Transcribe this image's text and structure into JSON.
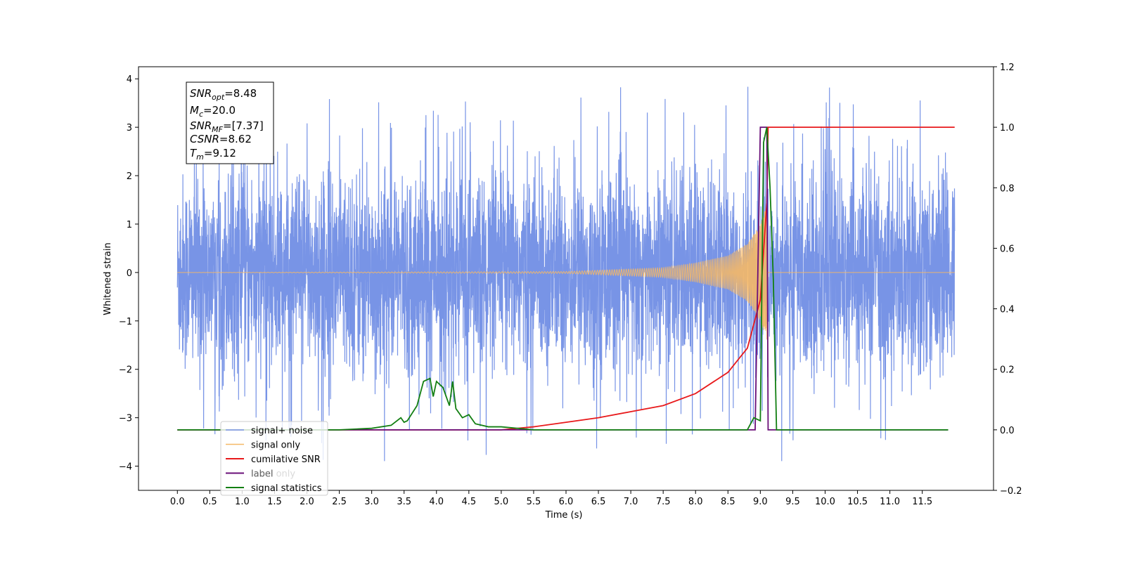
{
  "chart_data": {
    "type": "line",
    "xlabel": "Time (s)",
    "ylabel": "Whitened strain",
    "ylabel_right": "",
    "xlim": [
      -0.6,
      12.6
    ],
    "ylim": [
      -4.5,
      4.25
    ],
    "ylim_right": [
      -0.2,
      1.2
    ],
    "x_ticks": [
      "0.0",
      "0.5",
      "1.0",
      "1.5",
      "2.0",
      "2.5",
      "3.0",
      "3.5",
      "4.0",
      "4.5",
      "5.0",
      "5.5",
      "6.0",
      "6.5",
      "7.0",
      "7.5",
      "8.0",
      "8.5",
      "9.0",
      "9.5",
      "10.0",
      "10.5",
      "11.0",
      "11.5"
    ],
    "y_ticks": [
      "4",
      "3",
      "2",
      "1",
      "0",
      "−1",
      "−2",
      "−3",
      "−4"
    ],
    "y_ticks_right": [
      "1.2",
      "1.0",
      "0.8",
      "0.6",
      "0.4",
      "0.2",
      "0.0",
      "−0.2"
    ],
    "grid": false,
    "legend_position": "lower-left",
    "annotation": [
      {
        "var": "SNR",
        "sub": "opt",
        "value": "=8.48"
      },
      {
        "var": "M",
        "sub": "c",
        "value": "=20.0"
      },
      {
        "var": "SNR",
        "sub": "MF",
        "value": "=[7.37]"
      },
      {
        "var": "CSNR",
        "sub": "",
        "value": "=8.62"
      },
      {
        "var": "T",
        "sub": "m",
        "value": "=9.12"
      }
    ],
    "series": [
      {
        "name": "signal+ noise",
        "color": "#7894e6",
        "axis": "left",
        "description": "whitened noise band, roughly within ±2.5 with spikes to about ±3.9, from t=0 to t=12",
        "x_range": [
          0,
          12
        ],
        "band_limit": 2.5,
        "peak_limit": 3.9
      },
      {
        "name": "signal only",
        "color": "#f5b866",
        "axis": "left",
        "description": "chirp signal growing toward merger at t≈9.1",
        "envelope": {
          "x": [
            0,
            6.0,
            7.5,
            8.0,
            8.5,
            8.8,
            9.0,
            9.1,
            9.12
          ],
          "y": [
            0,
            0.02,
            0.1,
            0.2,
            0.35,
            0.6,
            1.0,
            1.4,
            0
          ]
        }
      },
      {
        "name": "cumilative SNR",
        "color": "#e8191b",
        "axis": "right",
        "x": [
          0,
          4.0,
          5.0,
          5.5,
          6.0,
          6.5,
          7.0,
          7.5,
          8.0,
          8.5,
          8.8,
          9.0,
          9.1,
          9.12,
          9.15,
          12.0
        ],
        "y": [
          0,
          0,
          0,
          0.01,
          0.025,
          0.04,
          0.06,
          0.08,
          0.12,
          0.19,
          0.27,
          0.43,
          0.75,
          1.0,
          1.0,
          1.0
        ]
      },
      {
        "name": "label",
        "color": "#6a0f78",
        "axis": "right",
        "x": [
          0,
          8.92,
          9.0,
          9.1,
          9.12,
          11.9
        ],
        "y": [
          0,
          0,
          1.0,
          1.0,
          0,
          0
        ]
      },
      {
        "name": "signal statistics",
        "color": "#127f12",
        "axis": "right",
        "x": [
          0,
          2.5,
          3.0,
          3.3,
          3.45,
          3.5,
          3.55,
          3.7,
          3.8,
          3.9,
          3.95,
          4.0,
          4.1,
          4.2,
          4.25,
          4.3,
          4.4,
          4.5,
          4.6,
          4.8,
          5.0,
          5.5,
          8.8,
          8.9,
          9.0,
          9.05,
          9.1,
          9.15,
          9.2,
          9.25,
          11.9
        ],
        "y": [
          0,
          0,
          0.005,
          0.015,
          0.04,
          0.025,
          0.03,
          0.08,
          0.16,
          0.17,
          0.11,
          0.16,
          0.14,
          0.08,
          0.16,
          0.07,
          0.04,
          0.05,
          0.02,
          0.01,
          0.01,
          0,
          0,
          0.04,
          0.03,
          0.95,
          1.0,
          0.8,
          0.5,
          0,
          0
        ]
      },
      {
        "name": "label only",
        "color": "#bbbbbb",
        "axis": "right",
        "x": [],
        "y": []
      }
    ]
  }
}
